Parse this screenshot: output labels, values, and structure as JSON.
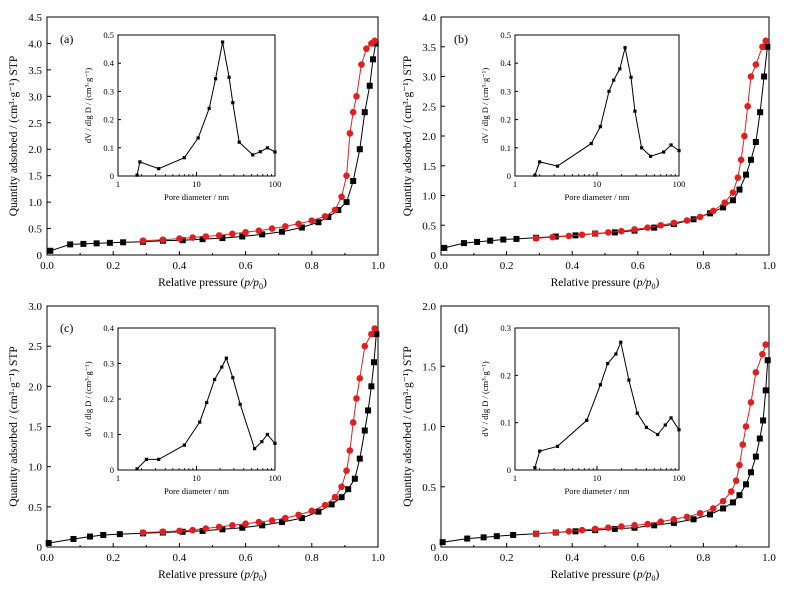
{
  "chart_data": [
    {
      "type": "scatter",
      "panel_label": "(a)",
      "xlabel": "Relative pressure (p/p0)",
      "ylabel": "Quantity adsorbed / (cm³·g⁻¹) STP",
      "xlim": [
        0,
        1.0
      ],
      "ylim": [
        0,
        4.5
      ],
      "xticks": [
        "0.0",
        "0.2",
        "0.4",
        "0.6",
        "0.8",
        "1.0"
      ],
      "yticks": [
        "0",
        "0.5",
        "1.0",
        "1.5",
        "2.0",
        "2.5",
        "3.0",
        "3.5",
        "4.0",
        "4.5"
      ],
      "series": [
        {
          "role": "adsorption",
          "color": "#000000",
          "marker": "square",
          "x": [
            0.01,
            0.07,
            0.11,
            0.15,
            0.19,
            0.23,
            0.29,
            0.35,
            0.41,
            0.47,
            0.53,
            0.59,
            0.65,
            0.71,
            0.77,
            0.82,
            0.85,
            0.88,
            0.905,
            0.925,
            0.945,
            0.96,
            0.975,
            0.985,
            0.993
          ],
          "y": [
            0.08,
            0.2,
            0.21,
            0.22,
            0.23,
            0.24,
            0.25,
            0.27,
            0.28,
            0.3,
            0.32,
            0.35,
            0.39,
            0.44,
            0.52,
            0.62,
            0.72,
            0.85,
            1.0,
            1.4,
            2.0,
            2.7,
            3.2,
            3.7,
            4.0
          ]
        },
        {
          "role": "desorption",
          "color": "#e02020",
          "marker": "circle",
          "x": [
            0.29,
            0.35,
            0.4,
            0.44,
            0.48,
            0.52,
            0.56,
            0.6,
            0.64,
            0.68,
            0.72,
            0.76,
            0.8,
            0.84,
            0.87,
            0.89,
            0.905,
            0.915,
            0.925,
            0.935,
            0.95,
            0.965,
            0.98,
            0.99
          ],
          "y": [
            0.27,
            0.29,
            0.31,
            0.33,
            0.35,
            0.37,
            0.4,
            0.43,
            0.46,
            0.5,
            0.54,
            0.59,
            0.65,
            0.73,
            0.85,
            1.1,
            1.5,
            2.3,
            2.7,
            3.0,
            3.6,
            3.9,
            4.0,
            4.05
          ]
        }
      ],
      "inset": {
        "xlabel": "Pore diameter / nm",
        "ylabel": "dV / dlg D / (cm³·g⁻¹)",
        "xscale": "log",
        "xlim": [
          1,
          100
        ],
        "ylim": [
          0,
          0.5
        ],
        "xticks": [
          "1",
          "10",
          "100"
        ],
        "yticks": [
          "0",
          "0.1",
          "0.2",
          "0.3",
          "0.4",
          "0.5"
        ],
        "x": [
          1.75,
          1.9,
          3.3,
          7.0,
          10.5,
          14.5,
          17.5,
          21.5,
          26.0,
          29.0,
          35.0,
          52.0,
          65.0,
          80.0,
          100.0
        ],
        "y": [
          0.003,
          0.05,
          0.026,
          0.065,
          0.135,
          0.24,
          0.345,
          0.475,
          0.35,
          0.26,
          0.12,
          0.075,
          0.086,
          0.1,
          0.085
        ]
      }
    },
    {
      "type": "scatter",
      "panel_label": "(b)",
      "xlabel": "Relative pressure (p/p0)",
      "ylabel": "Quantity adsorbed / (cm³·g⁻¹) STP",
      "xlim": [
        0,
        1.0
      ],
      "ylim": [
        0,
        4.0
      ],
      "xticks": [
        "0.0",
        "0.2",
        "0.4",
        "0.6",
        "0.8",
        "1.0"
      ],
      "yticks": [
        "0",
        "0.5",
        "1.0",
        "1.5",
        "2.0",
        "2.5",
        "3.0",
        "3.5",
        "4.0"
      ],
      "series": [
        {
          "role": "adsorption",
          "color": "#000000",
          "marker": "square",
          "x": [
            0.01,
            0.07,
            0.11,
            0.15,
            0.19,
            0.23,
            0.29,
            0.35,
            0.41,
            0.47,
            0.53,
            0.59,
            0.65,
            0.71,
            0.77,
            0.82,
            0.86,
            0.89,
            0.91,
            0.93,
            0.945,
            0.96,
            0.973,
            0.985,
            0.995
          ],
          "y": [
            0.12,
            0.2,
            0.22,
            0.24,
            0.26,
            0.27,
            0.29,
            0.31,
            0.33,
            0.36,
            0.38,
            0.41,
            0.46,
            0.52,
            0.6,
            0.7,
            0.8,
            0.92,
            1.1,
            1.35,
            1.6,
            1.9,
            2.4,
            3.0,
            3.5
          ]
        },
        {
          "role": "desorption",
          "color": "#e02020",
          "marker": "circle",
          "x": [
            0.29,
            0.34,
            0.39,
            0.43,
            0.47,
            0.51,
            0.55,
            0.59,
            0.63,
            0.67,
            0.71,
            0.75,
            0.79,
            0.83,
            0.865,
            0.89,
            0.905,
            0.915,
            0.925,
            0.935,
            0.945,
            0.96,
            0.98,
            0.99
          ],
          "y": [
            0.28,
            0.3,
            0.32,
            0.34,
            0.36,
            0.38,
            0.4,
            0.43,
            0.46,
            0.5,
            0.54,
            0.58,
            0.64,
            0.74,
            0.88,
            1.05,
            1.3,
            1.6,
            2.0,
            2.5,
            3.0,
            3.2,
            3.5,
            3.6
          ]
        }
      ],
      "inset": {
        "xlabel": "Pore diameter / nm",
        "ylabel": "dV / dlg D / (cm³·g⁻¹)",
        "xscale": "log",
        "xlim": [
          1,
          100
        ],
        "ylim": [
          0,
          0.5
        ],
        "xticks": [
          "1",
          "10",
          "100"
        ],
        "yticks": [
          "0",
          "0.1",
          "0.2",
          "0.3",
          "0.4",
          "0.5"
        ],
        "x": [
          1.75,
          2.0,
          3.3,
          8.5,
          11.0,
          14.0,
          16.0,
          19.0,
          22.0,
          26.0,
          29.0,
          35.0,
          45.0,
          65.0,
          80.0,
          100.0
        ],
        "y": [
          0.003,
          0.05,
          0.035,
          0.115,
          0.175,
          0.3,
          0.34,
          0.38,
          0.455,
          0.35,
          0.23,
          0.1,
          0.07,
          0.085,
          0.11,
          0.09
        ]
      }
    },
    {
      "type": "scatter",
      "panel_label": "(c)",
      "xlabel": "Relative pressure (p/p0)",
      "ylabel": "Quantity adsorbed / (cm³·g⁻¹) STP",
      "xlim": [
        0,
        1.0
      ],
      "ylim": [
        0,
        3.0
      ],
      "xticks": [
        "0.0",
        "0.2",
        "0.4",
        "0.6",
        "0.8",
        "1.0"
      ],
      "yticks": [
        "0",
        "0.5",
        "1.0",
        "1.5",
        "2.0",
        "2.5",
        "3.0"
      ],
      "series": [
        {
          "role": "adsorption",
          "color": "#000000",
          "marker": "square",
          "x": [
            0.005,
            0.08,
            0.13,
            0.17,
            0.22,
            0.29,
            0.35,
            0.41,
            0.47,
            0.53,
            0.59,
            0.65,
            0.71,
            0.77,
            0.82,
            0.86,
            0.89,
            0.91,
            0.93,
            0.945,
            0.96,
            0.97,
            0.98,
            0.988,
            0.995
          ],
          "y": [
            0.05,
            0.1,
            0.13,
            0.15,
            0.16,
            0.17,
            0.18,
            0.19,
            0.2,
            0.22,
            0.24,
            0.27,
            0.31,
            0.36,
            0.44,
            0.53,
            0.62,
            0.72,
            0.85,
            1.1,
            1.45,
            1.7,
            2.0,
            2.3,
            2.65
          ]
        },
        {
          "role": "desorption",
          "color": "#e02020",
          "marker": "circle",
          "x": [
            0.29,
            0.35,
            0.4,
            0.44,
            0.48,
            0.52,
            0.56,
            0.6,
            0.64,
            0.68,
            0.72,
            0.76,
            0.8,
            0.84,
            0.87,
            0.89,
            0.905,
            0.915,
            0.925,
            0.935,
            0.945,
            0.96,
            0.98,
            0.99
          ],
          "y": [
            0.18,
            0.19,
            0.2,
            0.21,
            0.23,
            0.25,
            0.27,
            0.29,
            0.31,
            0.33,
            0.36,
            0.4,
            0.45,
            0.52,
            0.62,
            0.75,
            0.95,
            1.2,
            1.55,
            1.85,
            2.1,
            2.5,
            2.65,
            2.72
          ]
        }
      ],
      "inset": {
        "xlabel": "Pore diameter / nm",
        "ylabel": "dV / dlg D / (cm³·g⁻¹)",
        "xscale": "log",
        "xlim": [
          1,
          100
        ],
        "ylim": [
          0,
          0.4
        ],
        "xticks": [
          "1",
          "10",
          "100"
        ],
        "yticks": [
          "0",
          "0.1",
          "0.2",
          "0.3",
          "0.4"
        ],
        "x": [
          1.75,
          2.3,
          3.3,
          7.0,
          11.0,
          13.5,
          17.0,
          21.0,
          24.0,
          29.0,
          36.0,
          55.0,
          68.0,
          80.0,
          100.0
        ],
        "y": [
          0.003,
          0.03,
          0.03,
          0.07,
          0.135,
          0.19,
          0.255,
          0.29,
          0.315,
          0.26,
          0.185,
          0.06,
          0.08,
          0.1,
          0.075
        ]
      }
    },
    {
      "type": "scatter",
      "panel_label": "(d)",
      "xlabel": "Relative pressure (p/p0)",
      "ylabel": "Quantity adsorbed / (cm³·g⁻¹) STP",
      "xlim": [
        0,
        1.0
      ],
      "ylim": [
        0,
        2.0
      ],
      "xticks": [
        "0.0",
        "0.2",
        "0.4",
        "0.6",
        "0.8",
        "1.0"
      ],
      "yticks": [
        "0",
        "0.5",
        "1.0",
        "1.5",
        "2.0"
      ],
      "series": [
        {
          "role": "adsorption",
          "color": "#000000",
          "marker": "square",
          "x": [
            0.005,
            0.08,
            0.13,
            0.17,
            0.22,
            0.29,
            0.35,
            0.41,
            0.47,
            0.53,
            0.59,
            0.65,
            0.71,
            0.77,
            0.82,
            0.86,
            0.89,
            0.91,
            0.93,
            0.945,
            0.96,
            0.972,
            0.982,
            0.99,
            0.996
          ],
          "y": [
            0.04,
            0.07,
            0.08,
            0.09,
            0.1,
            0.11,
            0.12,
            0.13,
            0.14,
            0.15,
            0.16,
            0.18,
            0.2,
            0.23,
            0.27,
            0.32,
            0.37,
            0.43,
            0.52,
            0.62,
            0.75,
            0.9,
            1.05,
            1.3,
            1.55
          ]
        },
        {
          "role": "desorption",
          "color": "#e02020",
          "marker": "circle",
          "x": [
            0.29,
            0.35,
            0.39,
            0.43,
            0.47,
            0.51,
            0.55,
            0.59,
            0.63,
            0.67,
            0.71,
            0.75,
            0.79,
            0.83,
            0.86,
            0.885,
            0.9,
            0.91,
            0.92,
            0.93,
            0.945,
            0.96,
            0.98,
            0.99
          ],
          "y": [
            0.11,
            0.12,
            0.13,
            0.14,
            0.15,
            0.16,
            0.17,
            0.18,
            0.19,
            0.21,
            0.23,
            0.25,
            0.28,
            0.32,
            0.38,
            0.46,
            0.55,
            0.68,
            0.85,
            1.0,
            1.2,
            1.45,
            1.6,
            1.68
          ]
        }
      ],
      "inset": {
        "xlabel": "Pore diameter / nm",
        "ylabel": "dV / dlg D / (cm³·g⁻¹)",
        "xscale": "log",
        "xlim": [
          1,
          100
        ],
        "ylim": [
          0,
          0.3
        ],
        "xticks": [
          "1",
          "10",
          "100"
        ],
        "yticks": [
          "0",
          "0.1",
          "0.2",
          "0.3"
        ],
        "x": [
          1.75,
          2.0,
          3.3,
          7.5,
          11.0,
          13.5,
          17.0,
          19.5,
          24.5,
          31.0,
          40.0,
          55.0,
          68.0,
          80.0,
          100.0
        ],
        "y": [
          0.005,
          0.04,
          0.05,
          0.105,
          0.18,
          0.225,
          0.245,
          0.27,
          0.19,
          0.12,
          0.09,
          0.075,
          0.095,
          0.11,
          0.085
        ]
      }
    }
  ]
}
